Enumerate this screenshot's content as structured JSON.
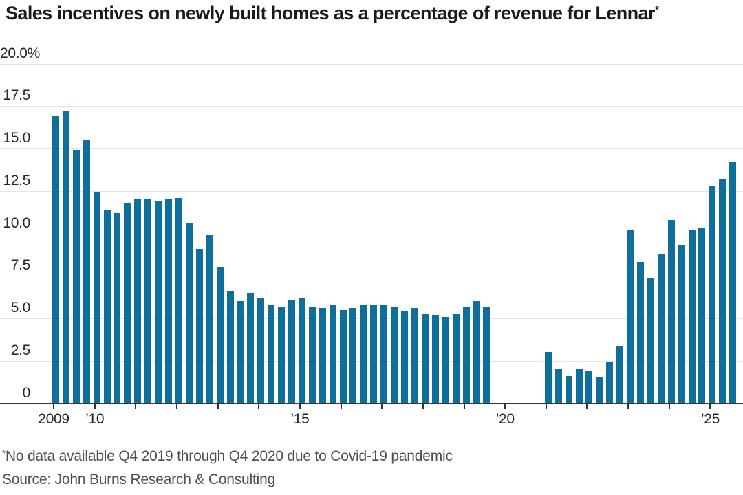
{
  "chart_data": {
    "type": "bar",
    "title": "Sales incentives on newly built homes as a percentage of revenue for Lennar",
    "title_superscript": "*",
    "ylabel": "",
    "unit": "% of revenue",
    "ylim": [
      0,
      20
    ],
    "grid": true,
    "legend": "none",
    "bar_color": "#0e6f9d",
    "y_ticks": [
      {
        "label": "20.0%",
        "value": 20
      },
      {
        "label": "17.5",
        "value": 17.5
      },
      {
        "label": "15.0",
        "value": 15
      },
      {
        "label": "12.5",
        "value": 12.5
      },
      {
        "label": "10.0",
        "value": 10
      },
      {
        "label": "7.5",
        "value": 7.5
      },
      {
        "label": "5.0",
        "value": 5
      },
      {
        "label": "2.5",
        "value": 2.5
      },
      {
        "label": "0",
        "value": 0
      }
    ],
    "x_axis": {
      "tick_years": [
        2009,
        2010,
        2011,
        2012,
        2013,
        2014,
        2015,
        2016,
        2017,
        2018,
        2019,
        2020,
        2021,
        2022,
        2023,
        2024,
        2025
      ],
      "labeled_ticks": [
        {
          "year": 2009,
          "label": "2009"
        },
        {
          "year": 2010,
          "label": "’10"
        },
        {
          "year": 2015,
          "label": "’15"
        },
        {
          "year": 2020,
          "label": "’20"
        },
        {
          "year": 2025,
          "label": "’25"
        }
      ]
    },
    "series": [
      {
        "name": "Sales incentives as a percentage of revenue",
        "points": [
          {
            "year": 2009,
            "quarter": 1,
            "value": 16.9
          },
          {
            "year": 2009,
            "quarter": 2,
            "value": 17.2
          },
          {
            "year": 2009,
            "quarter": 3,
            "value": 14.9
          },
          {
            "year": 2009,
            "quarter": 4,
            "value": 15.5
          },
          {
            "year": 2010,
            "quarter": 1,
            "value": 12.4
          },
          {
            "year": 2010,
            "quarter": 2,
            "value": 11.4
          },
          {
            "year": 2010,
            "quarter": 3,
            "value": 11.2
          },
          {
            "year": 2010,
            "quarter": 4,
            "value": 11.8
          },
          {
            "year": 2011,
            "quarter": 1,
            "value": 12.0
          },
          {
            "year": 2011,
            "quarter": 2,
            "value": 12.0
          },
          {
            "year": 2011,
            "quarter": 3,
            "value": 11.9
          },
          {
            "year": 2011,
            "quarter": 4,
            "value": 12.0
          },
          {
            "year": 2012,
            "quarter": 1,
            "value": 12.1
          },
          {
            "year": 2012,
            "quarter": 2,
            "value": 10.6
          },
          {
            "year": 2012,
            "quarter": 3,
            "value": 9.1
          },
          {
            "year": 2012,
            "quarter": 4,
            "value": 9.9
          },
          {
            "year": 2013,
            "quarter": 1,
            "value": 8.0
          },
          {
            "year": 2013,
            "quarter": 2,
            "value": 6.6
          },
          {
            "year": 2013,
            "quarter": 3,
            "value": 6.0
          },
          {
            "year": 2013,
            "quarter": 4,
            "value": 6.5
          },
          {
            "year": 2014,
            "quarter": 1,
            "value": 6.2
          },
          {
            "year": 2014,
            "quarter": 2,
            "value": 5.8
          },
          {
            "year": 2014,
            "quarter": 3,
            "value": 5.7
          },
          {
            "year": 2014,
            "quarter": 4,
            "value": 6.1
          },
          {
            "year": 2015,
            "quarter": 1,
            "value": 6.2
          },
          {
            "year": 2015,
            "quarter": 2,
            "value": 5.7
          },
          {
            "year": 2015,
            "quarter": 3,
            "value": 5.6
          },
          {
            "year": 2015,
            "quarter": 4,
            "value": 5.8
          },
          {
            "year": 2016,
            "quarter": 1,
            "value": 5.5
          },
          {
            "year": 2016,
            "quarter": 2,
            "value": 5.6
          },
          {
            "year": 2016,
            "quarter": 3,
            "value": 5.8
          },
          {
            "year": 2016,
            "quarter": 4,
            "value": 5.8
          },
          {
            "year": 2017,
            "quarter": 1,
            "value": 5.8
          },
          {
            "year": 2017,
            "quarter": 2,
            "value": 5.7
          },
          {
            "year": 2017,
            "quarter": 3,
            "value": 5.4
          },
          {
            "year": 2017,
            "quarter": 4,
            "value": 5.6
          },
          {
            "year": 2018,
            "quarter": 1,
            "value": 5.3
          },
          {
            "year": 2018,
            "quarter": 2,
            "value": 5.2
          },
          {
            "year": 2018,
            "quarter": 3,
            "value": 5.1
          },
          {
            "year": 2018,
            "quarter": 4,
            "value": 5.3
          },
          {
            "year": 2019,
            "quarter": 1,
            "value": 5.7
          },
          {
            "year": 2019,
            "quarter": 2,
            "value": 6.0
          },
          {
            "year": 2019,
            "quarter": 3,
            "value": 5.7
          },
          {
            "year": 2021,
            "quarter": 1,
            "value": 3.0
          },
          {
            "year": 2021,
            "quarter": 2,
            "value": 2.0
          },
          {
            "year": 2021,
            "quarter": 3,
            "value": 1.6
          },
          {
            "year": 2021,
            "quarter": 4,
            "value": 2.0
          },
          {
            "year": 2022,
            "quarter": 1,
            "value": 1.9
          },
          {
            "year": 2022,
            "quarter": 2,
            "value": 1.5
          },
          {
            "year": 2022,
            "quarter": 3,
            "value": 2.4
          },
          {
            "year": 2022,
            "quarter": 4,
            "value": 3.4
          },
          {
            "year": 2023,
            "quarter": 1,
            "value": 10.2
          },
          {
            "year": 2023,
            "quarter": 2,
            "value": 8.3
          },
          {
            "year": 2023,
            "quarter": 3,
            "value": 7.4
          },
          {
            "year": 2023,
            "quarter": 4,
            "value": 8.8
          },
          {
            "year": 2024,
            "quarter": 1,
            "value": 10.8
          },
          {
            "year": 2024,
            "quarter": 2,
            "value": 9.3
          },
          {
            "year": 2024,
            "quarter": 3,
            "value": 10.2
          },
          {
            "year": 2024,
            "quarter": 4,
            "value": 10.3
          },
          {
            "year": 2025,
            "quarter": 1,
            "value": 12.8
          },
          {
            "year": 2025,
            "quarter": 2,
            "value": 13.2
          },
          {
            "year": 2025,
            "quarter": 3,
            "value": 14.2
          }
        ]
      }
    ],
    "data_gap": "Q4 2019 through Q4 2020"
  },
  "footnote": {
    "marker": "*",
    "text": "No data available Q4 2019 through Q4 2020 due to Covid-19 pandemic"
  },
  "source": "Source: John Burns Research & Consulting"
}
